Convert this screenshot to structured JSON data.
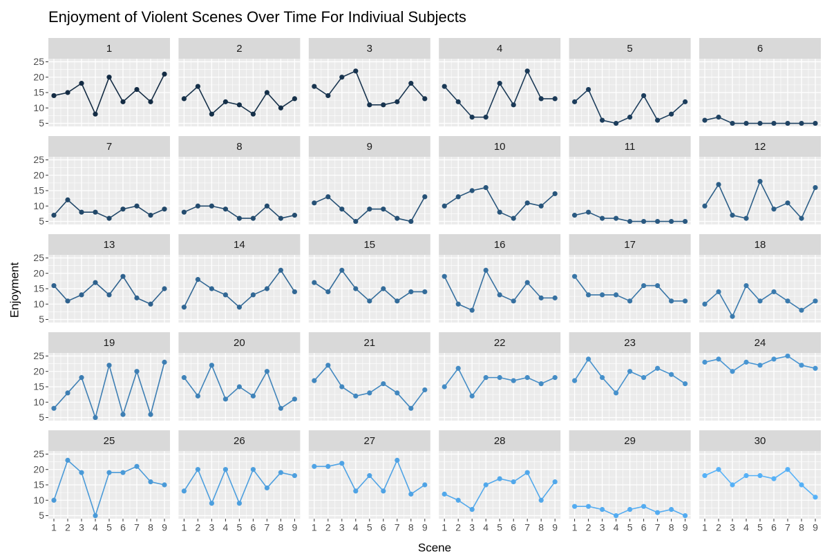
{
  "chart_data": {
    "type": "line",
    "title": "Enjoyment of Violent Scenes Over Time For Indiviual Subjects",
    "x_label": "Scene",
    "y_label": "Enjoyment",
    "x": [
      1,
      2,
      3,
      4,
      5,
      6,
      7,
      8,
      9
    ],
    "xlim": [
      0.6,
      9.4
    ],
    "xticks": [
      1,
      2,
      3,
      4,
      5,
      6,
      7,
      8,
      9
    ],
    "ylim": [
      4,
      26
    ],
    "yticks": [
      5,
      10,
      15,
      20,
      25
    ],
    "grid": true,
    "series": [
      {
        "name": "1",
        "color": "#132b43",
        "values": [
          14,
          15,
          18,
          8,
          20,
          12,
          16,
          12,
          21
        ]
      },
      {
        "name": "2",
        "color": "#153049",
        "values": [
          13,
          17,
          8,
          12,
          11,
          8,
          15,
          10,
          13
        ]
      },
      {
        "name": "3",
        "color": "#18344f",
        "values": [
          17,
          14,
          20,
          22,
          11,
          11,
          12,
          18,
          13
        ]
      },
      {
        "name": "4",
        "color": "#1a3956",
        "values": [
          17,
          12,
          7,
          7,
          18,
          11,
          22,
          13,
          13
        ]
      },
      {
        "name": "5",
        "color": "#1c3d5c",
        "values": [
          12,
          16,
          6,
          5,
          7,
          14,
          6,
          8,
          12
        ]
      },
      {
        "name": "6",
        "color": "#1f4262",
        "values": [
          6,
          7,
          5,
          5,
          5,
          5,
          5,
          5,
          5
        ]
      },
      {
        "name": "7",
        "color": "#214768",
        "values": [
          7,
          12,
          8,
          8,
          6,
          9,
          10,
          7,
          9
        ]
      },
      {
        "name": "8",
        "color": "#234b6e",
        "values": [
          8,
          10,
          10,
          9,
          6,
          6,
          10,
          6,
          7
        ]
      },
      {
        "name": "9",
        "color": "#255075",
        "values": [
          11,
          13,
          9,
          5,
          9,
          9,
          6,
          5,
          13
        ]
      },
      {
        "name": "10",
        "color": "#28557b",
        "values": [
          10,
          13,
          15,
          16,
          8,
          6,
          11,
          10,
          14
        ]
      },
      {
        "name": "11",
        "color": "#2a5981",
        "values": [
          7,
          8,
          6,
          6,
          5,
          5,
          5,
          5,
          5
        ]
      },
      {
        "name": "12",
        "color": "#2c5e87",
        "values": [
          10,
          17,
          7,
          6,
          18,
          9,
          11,
          6,
          16
        ]
      },
      {
        "name": "13",
        "color": "#2f628e",
        "values": [
          16,
          11,
          13,
          17,
          13,
          19,
          12,
          10,
          15
        ]
      },
      {
        "name": "14",
        "color": "#316794",
        "values": [
          9,
          18,
          15,
          13,
          9,
          13,
          15,
          21,
          14
        ]
      },
      {
        "name": "15",
        "color": "#336c9a",
        "values": [
          17,
          14,
          21,
          15,
          11,
          15,
          11,
          14,
          14
        ]
      },
      {
        "name": "16",
        "color": "#3670a0",
        "values": [
          19,
          10,
          8,
          21,
          13,
          11,
          17,
          12,
          12
        ]
      },
      {
        "name": "17",
        "color": "#3875a6",
        "values": [
          19,
          13,
          13,
          13,
          11,
          16,
          16,
          11,
          11
        ]
      },
      {
        "name": "18",
        "color": "#3a7aad",
        "values": [
          10,
          14,
          6,
          16,
          11,
          14,
          11,
          8,
          11
        ]
      },
      {
        "name": "19",
        "color": "#3d7eb3",
        "values": [
          8,
          13,
          18,
          5,
          22,
          6,
          20,
          6,
          23
        ]
      },
      {
        "name": "20",
        "color": "#3f83b9",
        "values": [
          18,
          12,
          22,
          11,
          15,
          12,
          20,
          8,
          11
        ]
      },
      {
        "name": "21",
        "color": "#4187bf",
        "values": [
          17,
          22,
          15,
          12,
          13,
          16,
          13,
          8,
          14
        ]
      },
      {
        "name": "22",
        "color": "#448cc5",
        "values": [
          15,
          21,
          12,
          18,
          18,
          17,
          18,
          16,
          18
        ]
      },
      {
        "name": "23",
        "color": "#4691cc",
        "values": [
          17,
          24,
          18,
          13,
          20,
          18,
          21,
          19,
          16
        ]
      },
      {
        "name": "24",
        "color": "#4895d2",
        "values": [
          23,
          24,
          20,
          23,
          22,
          24,
          25,
          22,
          21
        ]
      },
      {
        "name": "25",
        "color": "#4a9ad8",
        "values": [
          10,
          23,
          19,
          5,
          19,
          19,
          21,
          16,
          15
        ]
      },
      {
        "name": "26",
        "color": "#4d9fde",
        "values": [
          13,
          20,
          9,
          20,
          9,
          20,
          14,
          19,
          18
        ]
      },
      {
        "name": "27",
        "color": "#4fa3e5",
        "values": [
          21,
          21,
          22,
          13,
          18,
          13,
          23,
          12,
          15
        ]
      },
      {
        "name": "28",
        "color": "#51a8eb",
        "values": [
          12,
          10,
          7,
          15,
          17,
          16,
          19,
          10,
          16
        ]
      },
      {
        "name": "29",
        "color": "#54acf1",
        "values": [
          8,
          8,
          7,
          5,
          7,
          8,
          6,
          7,
          5
        ]
      },
      {
        "name": "30",
        "color": "#56b1f7",
        "values": [
          18,
          20,
          15,
          18,
          18,
          17,
          20,
          15,
          11
        ]
      }
    ]
  }
}
